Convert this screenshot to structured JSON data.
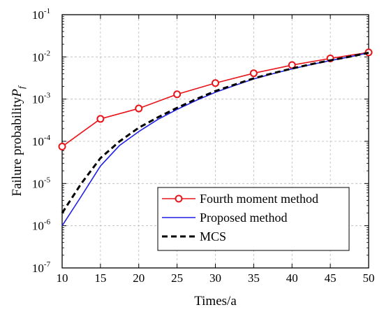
{
  "chart_data": {
    "type": "line",
    "xlabel": "Times/a",
    "ylabel": "Failure probability",
    "ylabel_symbol": "P",
    "ylabel_subscript": "f",
    "yscale": "log",
    "xlim": [
      10,
      50
    ],
    "ylim": [
      1e-07,
      0.1
    ],
    "grid": true,
    "legend_position": "bottom-right",
    "x_ticks": [
      "10",
      "15",
      "20",
      "25",
      "30",
      "35",
      "40",
      "45",
      "50"
    ],
    "y_ticks": [
      {
        "base": "10",
        "exp": "-7"
      },
      {
        "base": "10",
        "exp": "-6"
      },
      {
        "base": "10",
        "exp": "-5"
      },
      {
        "base": "10",
        "exp": "-4"
      },
      {
        "base": "10",
        "exp": "-3"
      },
      {
        "base": "10",
        "exp": "-2"
      },
      {
        "base": "10",
        "exp": "-1"
      }
    ],
    "series": [
      {
        "name": "Fourth moment method",
        "color": "#e8141b",
        "line_style": "solid",
        "marker": "open-circle",
        "x": [
          10,
          15,
          20,
          25,
          30,
          35,
          40,
          45,
          50
        ],
        "y": [
          7.5e-05,
          0.00034,
          0.0006,
          0.0013,
          0.0024,
          0.0041,
          0.0064,
          0.0092,
          0.0128
        ]
      },
      {
        "name": "Proposed method",
        "color": "#1f1fe6",
        "line_style": "solid",
        "marker": "none",
        "x": [
          10,
          12.5,
          15,
          17.5,
          20,
          22.5,
          25,
          27.5,
          30,
          32.5,
          35,
          37.5,
          40,
          42.5,
          45,
          47.5,
          50
        ],
        "y": [
          1e-06,
          5e-06,
          2.6e-05,
          8e-05,
          0.00017,
          0.00033,
          0.00057,
          0.00093,
          0.00145,
          0.0021,
          0.003,
          0.004,
          0.0052,
          0.0066,
          0.0082,
          0.01,
          0.0125
        ]
      },
      {
        "name": "MCS",
        "color": "#000000",
        "line_style": "dashed",
        "marker": "none",
        "x": [
          10,
          12.5,
          15,
          17.5,
          20,
          22.5,
          25,
          27.5,
          30,
          32.5,
          35,
          37.5,
          40,
          42.5,
          45,
          47.5,
          50
        ],
        "y": [
          2e-06,
          1e-05,
          4e-05,
          0.0001,
          0.00021,
          0.00037,
          0.00062,
          0.001,
          0.00155,
          0.0022,
          0.0031,
          0.0041,
          0.0053,
          0.0067,
          0.0083,
          0.0101,
          0.0125
        ]
      }
    ]
  }
}
